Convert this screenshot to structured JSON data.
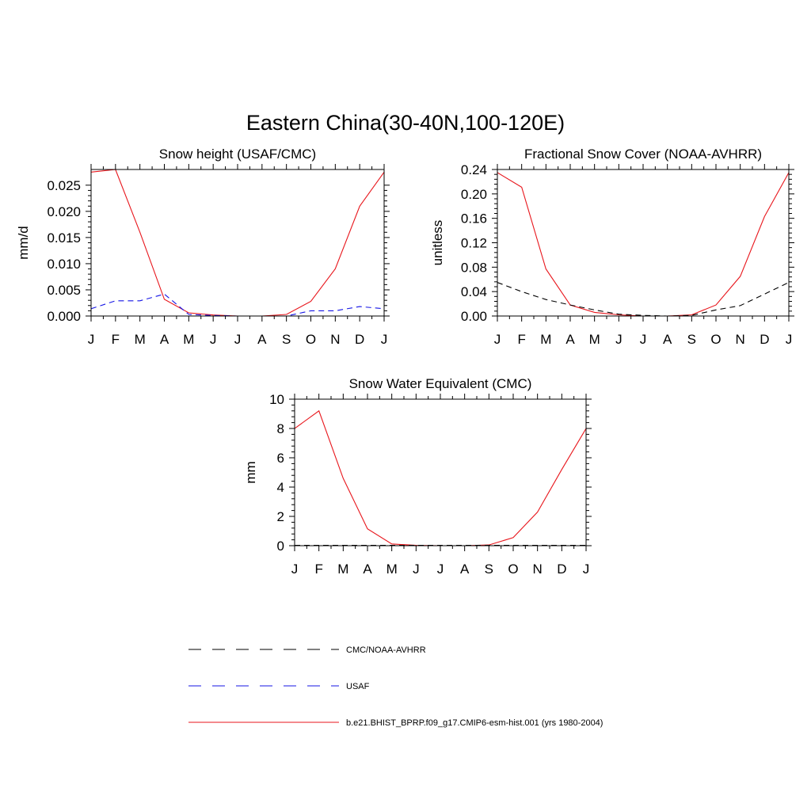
{
  "figure_title": "Eastern China(30-40N,100-120E)",
  "month_labels": [
    "J",
    "F",
    "M",
    "A",
    "M",
    "J",
    "J",
    "A",
    "S",
    "O",
    "N",
    "D",
    "J"
  ],
  "colors": {
    "model": "#e8161c",
    "usaf": "#1515e6",
    "obs": "#000000"
  },
  "chart_data": [
    {
      "type": "line",
      "title": "Snow height (USAF/CMC)",
      "ylabel": "mm/d",
      "ylim": [
        0,
        0.028
      ],
      "yticks": [
        0,
        0.005,
        0.01,
        0.015,
        0.02,
        0.025
      ],
      "ytick_labels": [
        "0.000",
        "0.005",
        "0.010",
        "0.015",
        "0.020",
        "0.025"
      ],
      "series": [
        {
          "name": "b.e21.BHIST_BPRP.f09_g17.CMIP6-esm-hist.001 (yrs 1980-2004)",
          "style": "solid",
          "color": "#e8161c",
          "values": [
            0.0275,
            0.028,
            0.016,
            0.0032,
            0.0006,
            0.0002,
            0.0,
            0.0,
            0.0003,
            0.0028,
            0.009,
            0.021,
            0.0275
          ]
        },
        {
          "name": "USAF",
          "style": "dashed",
          "color": "#1515e6",
          "values": [
            0.0014,
            0.0029,
            0.0029,
            0.0042,
            0.0003,
            0.0001,
            0.0,
            0.0,
            0.0,
            0.001,
            0.001,
            0.0018,
            0.0014
          ]
        }
      ]
    },
    {
      "type": "line",
      "title": "Fractional Snow Cover (NOAA-AVHRR)",
      "ylabel": "unitless",
      "ylim": [
        0,
        0.24
      ],
      "yticks": [
        0,
        0.04,
        0.08,
        0.12,
        0.16,
        0.2,
        0.24
      ],
      "ytick_labels": [
        "0.00",
        "0.04",
        "0.08",
        "0.12",
        "0.16",
        "0.20",
        "0.24"
      ],
      "series": [
        {
          "name": "b.e21.BHIST_BPRP.f09_g17.CMIP6-esm-hist.001 (yrs 1980-2004)",
          "style": "solid",
          "color": "#e8161c",
          "values": [
            0.235,
            0.211,
            0.077,
            0.018,
            0.006,
            0.002,
            0.0,
            0.0,
            0.002,
            0.018,
            0.065,
            0.163,
            0.235
          ]
        },
        {
          "name": "CMC/NOAA-AVHRR",
          "style": "dashed",
          "color": "#000000",
          "values": [
            0.055,
            0.04,
            0.027,
            0.018,
            0.01,
            0.003,
            0.001,
            0.0,
            0.001,
            0.01,
            0.017,
            0.036,
            0.055
          ]
        }
      ]
    },
    {
      "type": "line",
      "title": "Snow Water Equivalent (CMC)",
      "ylabel": "mm",
      "ylim": [
        0,
        10
      ],
      "yticks": [
        0,
        2,
        4,
        6,
        8,
        10
      ],
      "ytick_labels": [
        "0",
        "2",
        "4",
        "6",
        "8",
        "10"
      ],
      "series": [
        {
          "name": "b.e21.BHIST_BPRP.f09_g17.CMIP6-esm-hist.001 (yrs 1980-2004)",
          "style": "solid",
          "color": "#e8161c",
          "values": [
            8.0,
            9.2,
            4.6,
            1.15,
            0.12,
            0.02,
            0.0,
            0.0,
            0.05,
            0.55,
            2.3,
            5.2,
            8.0
          ]
        },
        {
          "name": "CMC/NOAA-AVHRR",
          "style": "dashed",
          "color": "#000000",
          "values": [
            0.02,
            0.02,
            0.02,
            0.02,
            0.02,
            0.02,
            0.02,
            0.02,
            0.02,
            0.02,
            0.02,
            0.02,
            0.02
          ]
        }
      ]
    }
  ],
  "legend": [
    {
      "label": "CMC/NOAA-AVHRR",
      "style": "dashed",
      "color": "#000000"
    },
    {
      "label": "USAF",
      "style": "dashed",
      "color": "#1515e6"
    },
    {
      "label": "b.e21.BHIST_BPRP.f09_g17.CMIP6-esm-hist.001 (yrs 1980-2004)",
      "style": "solid",
      "color": "#e8161c"
    }
  ]
}
